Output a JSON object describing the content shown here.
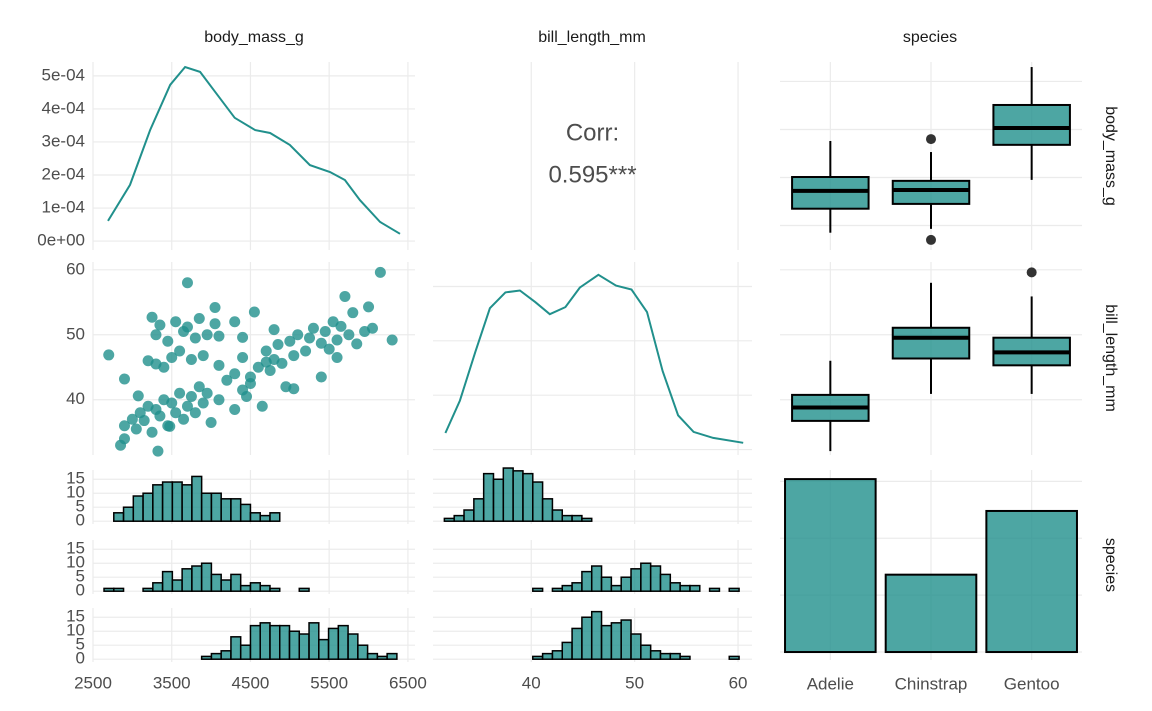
{
  "strip_labels": [
    "body_mass_g",
    "bill_length_mm",
    "species"
  ],
  "chart_data": [
    {
      "type": "density",
      "color": "#21908c",
      "grid": true,
      "xlim": [
        2500,
        6590
      ],
      "ylim": [
        -2.7e-05,
        0.000542
      ],
      "xticks": [
        2500,
        3500,
        4500,
        5500,
        6500
      ],
      "x_tick_labels": false,
      "yticks": [
        {
          "value": 0,
          "label": "0e+00"
        },
        {
          "value": 0.0001,
          "label": "1e-04"
        },
        {
          "value": 0.0002,
          "label": "2e-04"
        },
        {
          "value": 0.0003,
          "label": "3e-04"
        },
        {
          "value": 0.0004,
          "label": "4e-04"
        },
        {
          "value": 0.0005,
          "label": "5e-04"
        }
      ],
      "y_tick_labels": true,
      "x": [
        2690,
        2970,
        3225,
        3480,
        3670,
        3860,
        4050,
        4300,
        4560,
        4750,
        5000,
        5255,
        5510,
        5700,
        5890,
        6145,
        6400
      ],
      "values": [
        6.1e-05,
        0.00017,
        0.000336,
        0.000473,
        0.000527,
        0.000512,
        0.000452,
        0.000373,
        0.000336,
        0.000327,
        0.000291,
        0.00023,
        0.000209,
        0.000185,
        0.000124,
        5.8e-05,
        2.2e-05
      ]
    },
    {
      "type": "corr",
      "grid": true,
      "xlim": [
        30.5,
        61.35
      ],
      "xticks": [
        40,
        50,
        60
      ],
      "x_tick_labels": false,
      "label": "Corr:",
      "values": [
        0.595
      ],
      "value_labels": [
        "0.595***"
      ]
    },
    {
      "type": "boxplot",
      "color": "#21908c",
      "grid": true,
      "ylim": [
        2490,
        6405
      ],
      "yticks": [
        3000,
        4000,
        5000,
        6000
      ],
      "y_tick_labels": false,
      "boxes": [
        {
          "whisker_low": 2850,
          "q1": 3350,
          "median": 3720,
          "q3": 4010,
          "whisker_high": 4760,
          "outliers": []
        },
        {
          "whisker_low": 2930,
          "q1": 3450,
          "median": 3740,
          "q3": 3930,
          "whisker_high": 4530,
          "outliers": [
            2700,
            4800
          ]
        },
        {
          "whisker_low": 3950,
          "q1": 4680,
          "median": 5030,
          "q3": 5510,
          "whisker_high": 6300,
          "outliers": []
        }
      ]
    },
    {
      "type": "scatter",
      "color": "#21908c",
      "grid": true,
      "xlim": [
        2500,
        6590
      ],
      "ylim": [
        31.5,
        61.2
      ],
      "xticks": [
        2500,
        3500,
        4500,
        5500,
        6500
      ],
      "x_tick_labels": false,
      "yticks": [
        40,
        50,
        60
      ],
      "y_tick_labels": true,
      "x": [
        2900,
        3000,
        3050,
        3100,
        3150,
        3200,
        3250,
        3300,
        3350,
        3400,
        3450,
        3500,
        3550,
        3600,
        3650,
        3700,
        3750,
        3800,
        3850,
        3900,
        3950,
        4000,
        4100,
        4200,
        4300,
        4400,
        4450,
        4500,
        4650,
        4700,
        2850,
        2900,
        3325,
        3075,
        3475,
        3300,
        2700,
        3200,
        3300,
        3350,
        3400,
        3450,
        3500,
        3550,
        3600,
        3650,
        3700,
        3750,
        3800,
        3850,
        3900,
        3950,
        4050,
        4100,
        3700,
        4300,
        4400,
        4550,
        4800,
        3250,
        2900,
        4050,
        4100,
        4300,
        4400,
        4500,
        4600,
        4700,
        4750,
        4800,
        4850,
        4900,
        5000,
        5050,
        5100,
        5200,
        5250,
        5300,
        5400,
        5450,
        5500,
        5550,
        5600,
        5650,
        5700,
        5750,
        5800,
        5850,
        5950,
        6000,
        6050,
        6150,
        6300,
        5600,
        5400,
        4950,
        5050
      ],
      "values": [
        36,
        37,
        35.5,
        38,
        36.8,
        39,
        35,
        38.5,
        37.5,
        40,
        36,
        39.5,
        38,
        41,
        37,
        39,
        40.5,
        38,
        42,
        39.5,
        41,
        36.5,
        40,
        43,
        38.5,
        41.5,
        40.5,
        42.5,
        39,
        45.8,
        33,
        34,
        32.1,
        40.6,
        35.9,
        45.5,
        46.9,
        46,
        50,
        51.5,
        45,
        49,
        46.5,
        52,
        47.5,
        50.5,
        51.2,
        46.2,
        49.5,
        52.5,
        46.8,
        50,
        51.7,
        49.8,
        58,
        52,
        49.6,
        53.5,
        50.8,
        52.7,
        43.2,
        54.2,
        45.3,
        44,
        46.5,
        43.5,
        45,
        47.5,
        44.5,
        46.2,
        48.5,
        45.6,
        49,
        46.8,
        50,
        47.5,
        49.5,
        51,
        48.7,
        50.5,
        47.8,
        52,
        49.2,
        51.3,
        55.9,
        50,
        53.4,
        48.6,
        50.5,
        54.3,
        51,
        59.6,
        49.2,
        46.5,
        43.5,
        42,
        41.7
      ]
    },
    {
      "type": "density",
      "color": "#21908c",
      "grid": true,
      "xlim": [
        30.5,
        61.35
      ],
      "ylim": [
        -0.002,
        0.069
      ],
      "xticks": [
        40,
        50,
        60
      ],
      "x_tick_labels": false,
      "yticks": [
        0,
        0.02,
        0.04,
        0.06
      ],
      "y_tick_labels": false,
      "x": [
        31.7,
        33.1,
        34.6,
        36.0,
        37.5,
        38.9,
        40.4,
        41.8,
        43.3,
        44.7,
        46.5,
        48.2,
        49.7,
        51.2,
        52.7,
        54.2,
        55.7,
        57.6,
        60.5
      ],
      "values": [
        0.0061,
        0.018,
        0.036,
        0.052,
        0.0578,
        0.0585,
        0.0542,
        0.0498,
        0.0524,
        0.0596,
        0.0643,
        0.0603,
        0.0589,
        0.0506,
        0.0289,
        0.0126,
        0.0065,
        0.0043,
        0.0025
      ]
    },
    {
      "type": "boxplot",
      "color": "#21908c",
      "grid": true,
      "ylim": [
        31.5,
        61.2
      ],
      "yticks": [
        40,
        50,
        60
      ],
      "y_tick_labels": false,
      "boxes": [
        {
          "whisker_low": 32.1,
          "q1": 36.75,
          "median": 38.8,
          "q3": 40.75,
          "whisker_high": 46,
          "outliers": []
        },
        {
          "whisker_low": 40.9,
          "q1": 46.35,
          "median": 49.55,
          "q3": 51.08,
          "whisker_high": 58,
          "outliers": []
        },
        {
          "whisker_low": 40.9,
          "q1": 45.3,
          "median": 47.3,
          "q3": 49.55,
          "whisker_high": 55.9,
          "outliers": [
            59.6
          ]
        }
      ]
    },
    {
      "type": "histogram",
      "color": "#21908c",
      "grid": true,
      "xlim": [
        2500,
        6590
      ],
      "ylim": [
        -1,
        18.3
      ],
      "xticks": [
        2500,
        3500,
        4500,
        5500,
        6500
      ],
      "x_tick_labels": false,
      "yticks": [
        0,
        5,
        10,
        15
      ],
      "y_tick_labels": true,
      "bins": [
        2640,
        2764,
        2888,
        3012,
        3136,
        3260,
        3384,
        3508,
        3632,
        3756,
        3880,
        4004,
        4128,
        4252,
        4376,
        4500,
        4624,
        4748,
        4872,
        4996,
        5120,
        5244,
        5368,
        5492,
        5616,
        5740,
        5864,
        5988,
        6112,
        6236,
        6360
      ],
      "values": [
        0,
        3,
        5,
        9,
        10,
        13,
        14,
        14,
        13,
        16,
        10,
        10,
        8,
        8,
        6,
        3,
        2,
        3,
        0,
        0,
        0,
        0,
        0,
        0,
        0,
        0,
        0,
        0,
        0,
        0
      ]
    },
    {
      "type": "histogram",
      "color": "#21908c",
      "grid": true,
      "xlim": [
        2500,
        6590
      ],
      "ylim": [
        -1,
        18.3
      ],
      "xticks": [
        2500,
        3500,
        4500,
        5500,
        6500
      ],
      "x_tick_labels": false,
      "yticks": [
        0,
        5,
        10,
        15
      ],
      "y_tick_labels": true,
      "bins": [
        2640,
        2764,
        2888,
        3012,
        3136,
        3260,
        3384,
        3508,
        3632,
        3756,
        3880,
        4004,
        4128,
        4252,
        4376,
        4500,
        4624,
        4748,
        4872,
        4996,
        5120,
        5244,
        5368,
        5492,
        5616,
        5740,
        5864,
        5988,
        6112,
        6236,
        6360
      ],
      "values": [
        1,
        1,
        0,
        0,
        1,
        3,
        7,
        4,
        8,
        9,
        10,
        6,
        4,
        6,
        2,
        3,
        2,
        1,
        0,
        0,
        1,
        0,
        0,
        0,
        0,
        0,
        0,
        0,
        0,
        0
      ]
    },
    {
      "type": "histogram",
      "color": "#21908c",
      "grid": true,
      "xlim": [
        2500,
        6590
      ],
      "ylim": [
        -1,
        18.3
      ],
      "xticks": [
        2500,
        3500,
        4500,
        5500,
        6500
      ],
      "x_tick_labels": true,
      "yticks": [
        0,
        5,
        10,
        15
      ],
      "y_tick_labels": true,
      "bins": [
        2640,
        2764,
        2888,
        3012,
        3136,
        3260,
        3384,
        3508,
        3632,
        3756,
        3880,
        4004,
        4128,
        4252,
        4376,
        4500,
        4624,
        4748,
        4872,
        4996,
        5120,
        5244,
        5368,
        5492,
        5616,
        5740,
        5864,
        5988,
        6112,
        6236,
        6360
      ],
      "values": [
        0,
        0,
        0,
        0,
        0,
        0,
        0,
        0,
        0,
        0,
        1,
        2,
        3,
        8,
        5,
        12,
        13,
        12,
        12,
        10,
        9,
        13,
        7,
        11,
        12,
        9,
        5,
        2,
        1,
        2
      ]
    },
    {
      "type": "histogram",
      "color": "#21908c",
      "grid": true,
      "xlim": [
        30.5,
        61.35
      ],
      "ylim": [
        -1,
        18.3
      ],
      "xticks": [
        40,
        50,
        60
      ],
      "x_tick_labels": false,
      "yticks": [
        0,
        5,
        10,
        15
      ],
      "y_tick_labels": false,
      "bins": [
        31.6,
        32.55,
        33.5,
        34.45,
        35.4,
        36.35,
        37.3,
        38.25,
        39.2,
        40.15,
        41.1,
        42.05,
        43,
        43.95,
        44.9,
        45.85,
        46.8,
        47.75,
        48.7,
        49.65,
        50.6,
        51.55,
        52.5,
        53.45,
        54.4,
        55.35,
        56.3,
        57.25,
        58.2,
        59.15,
        60.1
      ],
      "values": [
        1,
        2,
        4,
        8,
        17,
        15,
        19,
        18,
        17,
        14,
        8,
        4,
        2,
        2,
        1,
        0,
        0,
        0,
        0,
        0,
        0,
        0,
        0,
        0,
        0,
        0,
        0,
        0,
        0,
        0
      ]
    },
    {
      "type": "histogram",
      "color": "#21908c",
      "grid": true,
      "xlim": [
        30.5,
        61.35
      ],
      "ylim": [
        -1,
        18.3
      ],
      "xticks": [
        40,
        50,
        60
      ],
      "x_tick_labels": false,
      "yticks": [
        0,
        5,
        10,
        15
      ],
      "y_tick_labels": false,
      "bins": [
        31.6,
        32.55,
        33.5,
        34.45,
        35.4,
        36.35,
        37.3,
        38.25,
        39.2,
        40.15,
        41.1,
        42.05,
        43,
        43.95,
        44.9,
        45.85,
        46.8,
        47.75,
        48.7,
        49.65,
        50.6,
        51.55,
        52.5,
        53.45,
        54.4,
        55.35,
        56.3,
        57.25,
        58.2,
        59.15,
        60.1
      ],
      "values": [
        0,
        0,
        0,
        0,
        0,
        0,
        0,
        0,
        0,
        1,
        0,
        1,
        2,
        3,
        7,
        9,
        5,
        2,
        5,
        8,
        10,
        9,
        6,
        3,
        2,
        2,
        0,
        1,
        0,
        1
      ]
    },
    {
      "type": "histogram",
      "color": "#21908c",
      "grid": true,
      "xlim": [
        30.5,
        61.35
      ],
      "ylim": [
        -1,
        18.3
      ],
      "xticks": [
        40,
        50,
        60
      ],
      "x_tick_labels": true,
      "yticks": [
        0,
        5,
        10,
        15
      ],
      "y_tick_labels": false,
      "bins": [
        31.6,
        32.55,
        33.5,
        34.45,
        35.4,
        36.35,
        37.3,
        38.25,
        39.2,
        40.15,
        41.1,
        42.05,
        43,
        43.95,
        44.9,
        45.85,
        46.8,
        47.75,
        48.7,
        49.65,
        50.6,
        51.55,
        52.5,
        53.45,
        54.4,
        55.35,
        56.3,
        57.25,
        58.2,
        59.15,
        60.1
      ],
      "values": [
        0,
        0,
        0,
        0,
        0,
        0,
        0,
        0,
        0,
        1,
        2,
        3,
        6,
        11,
        15,
        17,
        12,
        13,
        14,
        9,
        5,
        3,
        2,
        2,
        1,
        0,
        0,
        0,
        0,
        1
      ]
    },
    {
      "type": "bar",
      "color": "#21908c",
      "grid": true,
      "ylim": [
        -7,
        160
      ],
      "yticks": [
        0,
        50,
        100,
        150
      ],
      "y_tick_labels": false,
      "categories": [
        "Adelie",
        "Chinstrap",
        "Gentoo"
      ],
      "values": [
        152,
        68,
        124
      ]
    }
  ]
}
